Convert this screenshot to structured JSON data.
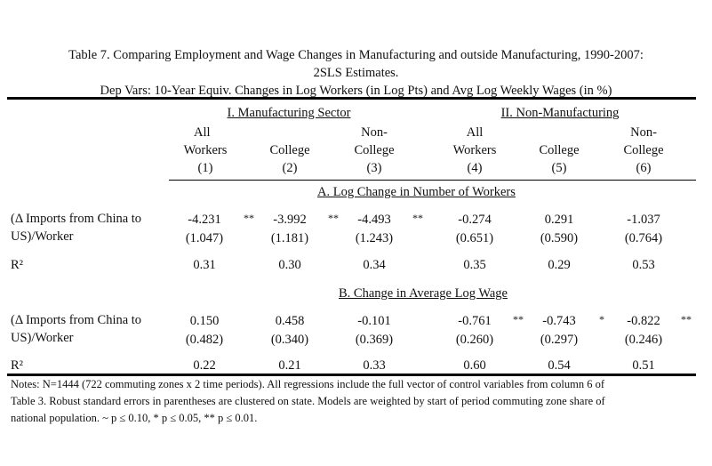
{
  "title": {
    "line1": "Table 7. Comparing Employment and Wage Changes in Manufacturing and outside Manufacturing, 1990-2007:",
    "line2": "2SLS Estimates.",
    "line3": "Dep Vars: 10-Year Equiv. Changes in Log Workers (in Log Pts) and Avg Log Weekly Wages (in %)"
  },
  "groups": [
    "I. Manufacturing Sector",
    "II. Non-Manufacturing"
  ],
  "columns": [
    {
      "l1": "All",
      "l2": "Workers",
      "l3": "(1)"
    },
    {
      "l1": "",
      "l2": "College",
      "l3": "(2)"
    },
    {
      "l1": "Non-",
      "l2": "College",
      "l3": "(3)"
    },
    {
      "l1": "All",
      "l2": "Workers",
      "l3": "(4)"
    },
    {
      "l1": "",
      "l2": "College",
      "l3": "(5)"
    },
    {
      "l1": "Non-",
      "l2": "College",
      "l3": "(6)"
    }
  ],
  "panelA": {
    "heading": "A. Log Change in Number of Workers",
    "row_label_1": "(Δ Imports from China to",
    "row_label_2": "US)/Worker",
    "coef": [
      "-4.231",
      "-3.992",
      "-4.493",
      "-0.274",
      "0.291",
      "-1.037"
    ],
    "stars": [
      "**",
      "**",
      "**",
      "",
      "",
      ""
    ],
    "se": [
      "(1.047)",
      "(1.181)",
      "(1.243)",
      "(0.651)",
      "(0.590)",
      "(0.764)"
    ],
    "r2_label": "R²",
    "r2": [
      "0.31",
      "0.30",
      "0.34",
      "0.35",
      "0.29",
      "0.53"
    ]
  },
  "panelB": {
    "heading": "B. Change in Average Log Wage",
    "row_label_1": "(Δ Imports from China to",
    "row_label_2": "US)/Worker",
    "coef": [
      "0.150",
      "0.458",
      "-0.101",
      "-0.761",
      "-0.743",
      "-0.822"
    ],
    "stars": [
      "",
      "",
      "",
      "**",
      "*",
      "**"
    ],
    "se": [
      "(0.482)",
      "(0.340)",
      "(0.369)",
      "(0.260)",
      "(0.297)",
      "(0.246)"
    ],
    "r2_label": "R²",
    "r2": [
      "0.22",
      "0.21",
      "0.33",
      "0.60",
      "0.54",
      "0.51"
    ]
  },
  "notes": {
    "line1": "Notes: N=1444 (722 commuting zones x 2 time periods). All regressions include the full vector of control variables from column 6 of",
    "line2": "Table 3. Robust standard errors in parentheses are clustered on state. Models are weighted by start of period commuting zone share of",
    "line3": "national population.  ~ p ≤ 0.10, * p ≤ 0.05, ** p ≤ 0.01."
  }
}
